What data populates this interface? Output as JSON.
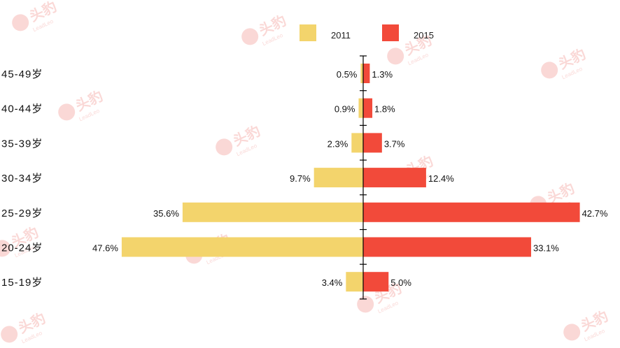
{
  "watermark": {
    "text": "头豹",
    "subtext": "LeadLeo",
    "color": "#e8413a"
  },
  "legend": [
    {
      "label": "2011",
      "color": "#f3d46c"
    },
    {
      "label": "2015",
      "color": "#f24a3a"
    }
  ],
  "chart_data": {
    "type": "bar",
    "orientation": "horizontal-diverging",
    "categories": [
      "45-49岁",
      "40-44岁",
      "35-39岁",
      "30-34岁",
      "25-29岁",
      "20-24岁",
      "15-19岁"
    ],
    "series": [
      {
        "name": "2011",
        "side": "left",
        "color": "#f3d46c",
        "values": [
          0.5,
          0.9,
          2.3,
          9.7,
          35.6,
          47.6,
          3.4
        ],
        "labels": [
          "0.5%",
          "0.9%",
          "2.3%",
          "9.7%",
          "35.6%",
          "47.6%",
          "3.4%"
        ]
      },
      {
        "name": "2015",
        "side": "right",
        "color": "#f24a3a",
        "values": [
          1.3,
          1.8,
          3.7,
          12.4,
          42.7,
          33.1,
          5.0
        ],
        "labels": [
          "1.3%",
          "1.8%",
          "3.7%",
          "12.4%",
          "42.7%",
          "33.1%",
          "5.0%"
        ]
      }
    ],
    "legend_position": "top-right",
    "grid": false
  }
}
